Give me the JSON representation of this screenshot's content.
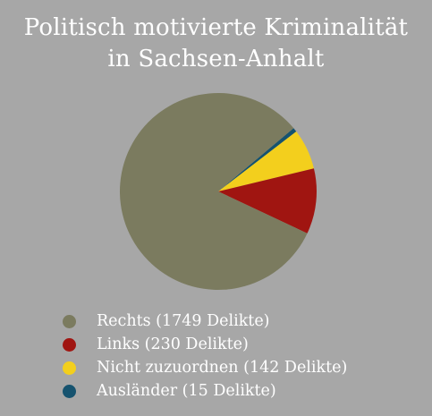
{
  "title_line1": "Politisch motivierte Kriminalität",
  "title_line2": "in Sachsen-Anhalt",
  "chart_data": {
    "type": "pie",
    "title": "Politisch motivierte Kriminalität in Sachsen-Anhalt",
    "slices": [
      {
        "label": "Rechts (1749 Delikte)",
        "value": 1749,
        "color": "#7b7b5f"
      },
      {
        "label": "Links (230 Delikte)",
        "value": 230,
        "color": "#a01511"
      },
      {
        "label": "Nicht zuzuordnen (142 Delikte)",
        "value": 142,
        "color": "#f3cf1d"
      },
      {
        "label": "Ausländer (15 Delikte)",
        "value": 15,
        "color": "#16536f"
      }
    ],
    "legend_position": "bottom"
  }
}
